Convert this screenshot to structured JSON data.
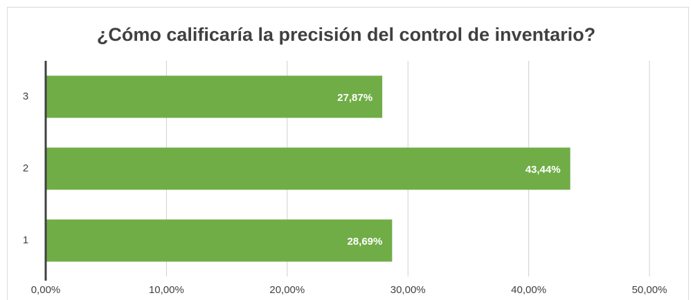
{
  "chart_data": {
    "type": "bar",
    "orientation": "horizontal",
    "title": "¿Cómo calificaría la precisión del control de inventario?",
    "categories": [
      "1",
      "2",
      "3"
    ],
    "values": [
      28.69,
      43.44,
      27.87
    ],
    "value_labels": [
      "28,69%",
      "43,44%",
      "27,87%"
    ],
    "color": "#70ad47",
    "xlim": [
      0,
      50
    ],
    "xticks": [
      {
        "value": 0,
        "label": "0,00%"
      },
      {
        "value": 10,
        "label": "10,00%"
      },
      {
        "value": 20,
        "label": "20,00%"
      },
      {
        "value": 30,
        "label": "30,00%"
      },
      {
        "value": 40,
        "label": "40,00%"
      },
      {
        "value": 50,
        "label": "50,00%"
      }
    ],
    "grid": true
  }
}
